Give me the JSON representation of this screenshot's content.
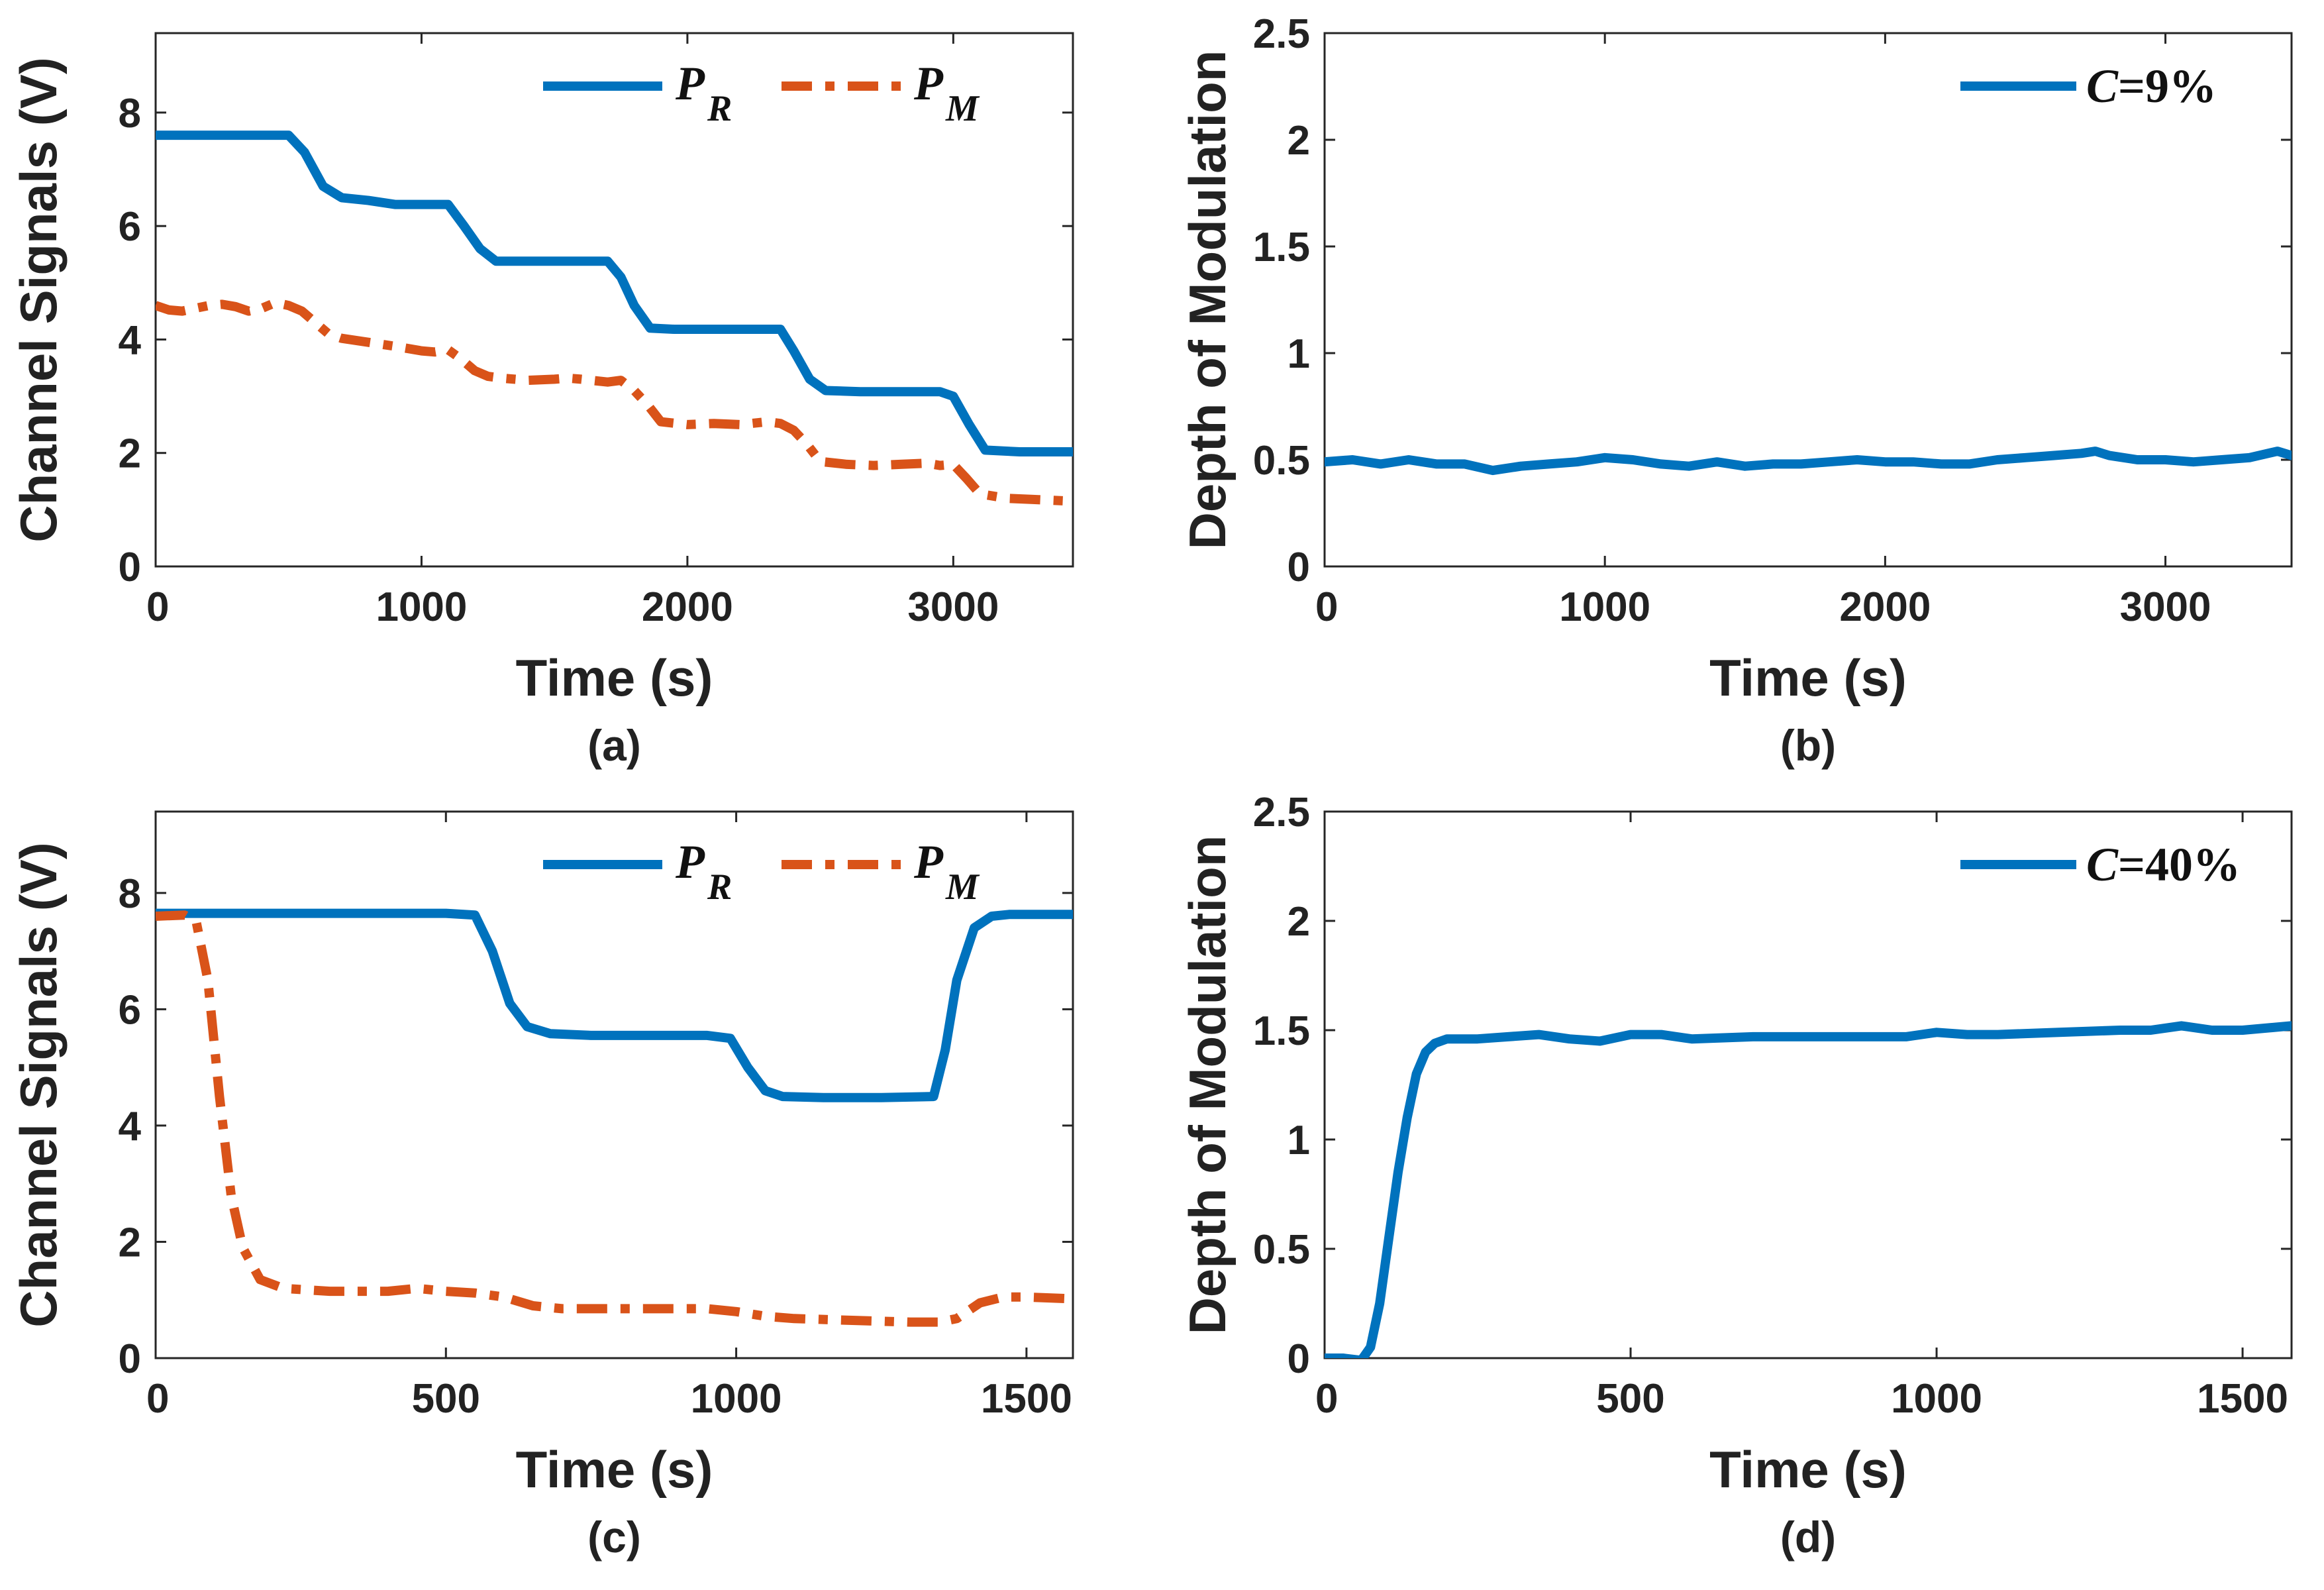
{
  "figure": {
    "background": "#ffffff",
    "axis_color": "#262626"
  },
  "chart_data": [
    {
      "id": "a",
      "type": "line",
      "panel_label": "(a)",
      "xlabel": "Time (s)",
      "ylabel": "Channel Signals (V)",
      "xlim": [
        0,
        3450
      ],
      "ylim": [
        0,
        9.4
      ],
      "xticks": [
        0,
        1000,
        2000,
        3000
      ],
      "yticks": [
        0,
        2,
        4,
        6,
        8
      ],
      "xtick_labels": [
        "0",
        "1000",
        "2000",
        "3000"
      ],
      "ytick_labels": [
        "0",
        "2",
        "4",
        "6",
        "8"
      ],
      "legend_position": "top-right",
      "series": [
        {
          "name": "P_R",
          "legend_main": "P",
          "legend_sub": "R",
          "color": "#0072BD",
          "style": "solid",
          "x": [
            0,
            500,
            560,
            630,
            700,
            800,
            900,
            1000,
            1100,
            1160,
            1220,
            1280,
            1400,
            1550,
            1700,
            1750,
            1800,
            1860,
            1950,
            2100,
            2250,
            2350,
            2400,
            2460,
            2520,
            2650,
            2800,
            2950,
            3000,
            3060,
            3120,
            3250,
            3450
          ],
          "y": [
            7.6,
            7.6,
            7.3,
            6.7,
            6.5,
            6.45,
            6.38,
            6.38,
            6.38,
            6.0,
            5.6,
            5.38,
            5.38,
            5.38,
            5.38,
            5.1,
            4.6,
            4.2,
            4.18,
            4.18,
            4.18,
            4.18,
            3.8,
            3.3,
            3.1,
            3.08,
            3.08,
            3.08,
            3.0,
            2.5,
            2.05,
            2.02,
            2.02
          ]
        },
        {
          "name": "P_M",
          "legend_main": "P",
          "legend_sub": "M",
          "color": "#D95319",
          "style": "dashdot",
          "x": [
            0,
            50,
            100,
            150,
            200,
            250,
            300,
            350,
            400,
            450,
            500,
            550,
            600,
            650,
            700,
            800,
            900,
            1000,
            1050,
            1100,
            1150,
            1200,
            1250,
            1300,
            1400,
            1500,
            1550,
            1600,
            1700,
            1750,
            1800,
            1850,
            1900,
            2000,
            2100,
            2200,
            2300,
            2350,
            2400,
            2450,
            2500,
            2600,
            2700,
            2800,
            2900,
            2950,
            3000,
            3050,
            3100,
            3200,
            3300,
            3450
          ],
          "y": [
            4.6,
            4.52,
            4.5,
            4.55,
            4.6,
            4.62,
            4.58,
            4.5,
            4.55,
            4.65,
            4.6,
            4.5,
            4.3,
            4.1,
            4.02,
            3.95,
            3.88,
            3.8,
            3.78,
            3.82,
            3.65,
            3.45,
            3.35,
            3.32,
            3.28,
            3.3,
            3.32,
            3.3,
            3.25,
            3.28,
            3.1,
            2.85,
            2.55,
            2.5,
            2.52,
            2.5,
            2.55,
            2.52,
            2.4,
            2.15,
            1.85,
            1.8,
            1.78,
            1.8,
            1.82,
            1.78,
            1.8,
            1.55,
            1.28,
            1.2,
            1.18,
            1.15
          ]
        }
      ]
    },
    {
      "id": "b",
      "type": "line",
      "panel_label": "(b)",
      "xlabel": "Time (s)",
      "ylabel": "Depth of Modulation",
      "xlim": [
        0,
        3450
      ],
      "ylim": [
        0,
        2.5
      ],
      "xticks": [
        0,
        1000,
        2000,
        3000
      ],
      "yticks": [
        0,
        0.5,
        1,
        1.5,
        2,
        2.5
      ],
      "xtick_labels": [
        "0",
        "1000",
        "2000",
        "3000"
      ],
      "ytick_labels": [
        "0",
        "0.5",
        "1",
        "1.5",
        "2",
        "2.5"
      ],
      "legend_position": "top-right",
      "series": [
        {
          "name": "C=9%",
          "legend_main": "C",
          "legend_rest": "=9%",
          "color": "#0072BD",
          "style": "solid",
          "x": [
            0,
            100,
            200,
            300,
            400,
            500,
            600,
            700,
            800,
            900,
            1000,
            1100,
            1200,
            1300,
            1400,
            1500,
            1600,
            1700,
            1800,
            1900,
            2000,
            2100,
            2200,
            2300,
            2400,
            2500,
            2600,
            2700,
            2750,
            2800,
            2900,
            3000,
            3100,
            3200,
            3300,
            3400,
            3450
          ],
          "y": [
            0.49,
            0.5,
            0.48,
            0.5,
            0.48,
            0.48,
            0.45,
            0.47,
            0.48,
            0.49,
            0.51,
            0.5,
            0.48,
            0.47,
            0.49,
            0.47,
            0.48,
            0.48,
            0.49,
            0.5,
            0.49,
            0.49,
            0.48,
            0.48,
            0.5,
            0.51,
            0.52,
            0.53,
            0.54,
            0.52,
            0.5,
            0.5,
            0.49,
            0.5,
            0.51,
            0.54,
            0.52
          ]
        }
      ]
    },
    {
      "id": "c",
      "type": "line",
      "panel_label": "(c)",
      "xlabel": "Time (s)",
      "ylabel": "Channel Signals (V)",
      "xlim": [
        0,
        1580
      ],
      "ylim": [
        0,
        9.4
      ],
      "xticks": [
        0,
        500,
        1000,
        1500
      ],
      "yticks": [
        0,
        2,
        4,
        6,
        8
      ],
      "xtick_labels": [
        "0",
        "500",
        "1000",
        "1500"
      ],
      "ytick_labels": [
        "0",
        "2",
        "4",
        "6",
        "8"
      ],
      "legend_position": "top-right",
      "series": [
        {
          "name": "P_R",
          "legend_main": "P",
          "legend_sub": "R",
          "color": "#0072BD",
          "style": "solid",
          "x": [
            0,
            100,
            200,
            300,
            400,
            500,
            550,
            580,
            610,
            640,
            680,
            750,
            850,
            950,
            990,
            1020,
            1050,
            1080,
            1150,
            1250,
            1340,
            1360,
            1380,
            1410,
            1440,
            1470,
            1500,
            1580
          ],
          "y": [
            7.65,
            7.65,
            7.65,
            7.65,
            7.65,
            7.65,
            7.62,
            7.0,
            6.1,
            5.7,
            5.58,
            5.55,
            5.55,
            5.55,
            5.5,
            5.0,
            4.6,
            4.5,
            4.48,
            4.48,
            4.5,
            5.3,
            6.5,
            7.4,
            7.6,
            7.63,
            7.63,
            7.63
          ]
        },
        {
          "name": "P_M",
          "legend_main": "P",
          "legend_sub": "M",
          "color": "#D95319",
          "style": "dashdot",
          "x": [
            0,
            50,
            70,
            90,
            110,
            130,
            150,
            180,
            220,
            300,
            400,
            450,
            500,
            550,
            600,
            650,
            700,
            800,
            900,
            950,
            1000,
            1050,
            1100,
            1200,
            1300,
            1350,
            1380,
            1420,
            1460,
            1500,
            1580
          ],
          "y": [
            7.6,
            7.62,
            7.5,
            6.5,
            4.5,
            2.8,
            1.9,
            1.35,
            1.2,
            1.15,
            1.15,
            1.2,
            1.15,
            1.12,
            1.05,
            0.9,
            0.85,
            0.85,
            0.85,
            0.85,
            0.8,
            0.72,
            0.68,
            0.65,
            0.62,
            0.62,
            0.68,
            0.95,
            1.05,
            1.05,
            1.02
          ]
        }
      ]
    },
    {
      "id": "d",
      "type": "line",
      "panel_label": "(d)",
      "xlabel": "Time (s)",
      "ylabel": "Depth of Modulation",
      "xlim": [
        0,
        1580
      ],
      "ylim": [
        0,
        2.5
      ],
      "xticks": [
        0,
        500,
        1000,
        1500
      ],
      "yticks": [
        0,
        0.5,
        1,
        1.5,
        2,
        2.5
      ],
      "xtick_labels": [
        "0",
        "500",
        "1000",
        "1500"
      ],
      "ytick_labels": [
        "0",
        "0.5",
        "1",
        "1.5",
        "2",
        "2.5"
      ],
      "legend_position": "top-right",
      "series": [
        {
          "name": "C=40%",
          "legend_main": "C",
          "legend_rest": "=40%",
          "color": "#0072BD",
          "style": "solid",
          "x": [
            0,
            30,
            60,
            75,
            90,
            105,
            120,
            135,
            150,
            165,
            180,
            200,
            250,
            300,
            350,
            400,
            450,
            500,
            550,
            600,
            700,
            800,
            900,
            950,
            1000,
            1050,
            1100,
            1200,
            1300,
            1350,
            1400,
            1450,
            1500,
            1580
          ],
          "y": [
            0.0,
            0.0,
            -0.01,
            0.05,
            0.25,
            0.55,
            0.85,
            1.1,
            1.3,
            1.4,
            1.44,
            1.46,
            1.46,
            1.47,
            1.48,
            1.46,
            1.45,
            1.48,
            1.48,
            1.46,
            1.47,
            1.47,
            1.47,
            1.47,
            1.49,
            1.48,
            1.48,
            1.49,
            1.5,
            1.5,
            1.52,
            1.5,
            1.5,
            1.52
          ]
        }
      ]
    }
  ]
}
